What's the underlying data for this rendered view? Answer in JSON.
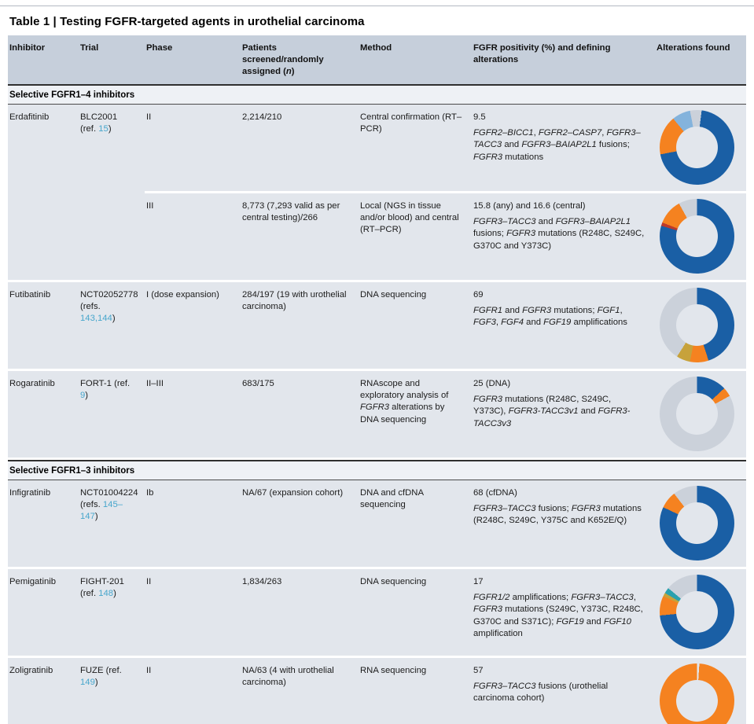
{
  "title": {
    "text": "Table 1 | Testing FGFR-targeted agents in urothelial carcinoma"
  },
  "table": {
    "columns": [
      "Inhibitor",
      "Trial",
      "Phase",
      "Patients screened/randomly assigned (*n*)",
      "Method",
      "FGFR positivity (%) and defining alterations",
      "Alterations found"
    ],
    "sections": [
      {
        "header": "Selective FGFR1–4 inhibitors",
        "rows": [
          {
            "inhibitor": "Erdafitinib",
            "trial": "BLC2001 (ref. {15})",
            "entries": [
              {
                "phase": "II",
                "patients": "2,214/210",
                "method": "Central confirmation (RT–PCR)",
                "positivity": {
                  "value": "9.5",
                  "detail": "*FGFR2–BICC1*, *FGFR2–CASP7*, *FGFR3–TACC3* and *FGFR3–BAIAP2L1* fusions; *FGFR3* mutations"
                },
                "donut": [
                  [
                    "gray",
                    2
                  ],
                  [
                    "blue",
                    70
                  ],
                  [
                    "orange",
                    17
                  ],
                  [
                    "lightblue",
                    8
                  ],
                  [
                    "gray",
                    3
                  ]
                ]
              },
              {
                "phase": "III",
                "patients": "8,773 (7,293 valid as per central testing)/266",
                "method": "Local (NGS in tissue and/or blood) and central (RT–PCR)",
                "positivity": {
                  "value": "15.8 (any) and 16.6 (central)",
                  "detail": "*FGFR3–TACC3* and *FGFR3–BAIAP2L1* fusions; *FGFR3* mutations (R248C, S249C, G370C and Y373C)"
                },
                "donut": [
                  [
                    "blue",
                    79.5
                  ],
                  [
                    "red",
                    1.5
                  ],
                  [
                    "orange",
                    11
                  ],
                  [
                    "gray",
                    8
                  ]
                ]
              }
            ]
          },
          {
            "inhibitor": "Futibatinib",
            "trial": "NCT02052778 (refs. {143,144})",
            "entries": [
              {
                "phase": "I (dose expansion)",
                "patients": "284/197 (19 with urothelial carcinoma)",
                "method": "DNA sequencing",
                "positivity": {
                  "value": "69",
                  "detail": "*FGFR1* and *FGFR3* mutations; *FGF1*, *FGF3*, *FGF4* and *FGF19* amplifications"
                },
                "donut": [
                  [
                    "blue",
                    45
                  ],
                  [
                    "orange",
                    8
                  ],
                  [
                    "gold",
                    6
                  ],
                  [
                    "gray",
                    41
                  ]
                ]
              }
            ]
          },
          {
            "inhibitor": "Rogaratinib",
            "trial": "FORT-1 (ref. {9})",
            "entries": [
              {
                "phase": "II–III",
                "patients": "683/175",
                "method": "RNAscope and exploratory analysis of *FGFR3* alterations by DNA sequencing",
                "positivity": {
                  "value": "25 (DNA)",
                  "detail": "*FGFR3* mutations (R248C, S249C, Y373C), *FGFR3-TACC3v1* and *FGFR3-TACC3v3*"
                },
                "donut": [
                  [
                    "blue",
                    13
                  ],
                  [
                    "orange",
                    4
                  ],
                  [
                    "gray",
                    83
                  ]
                ]
              }
            ]
          }
        ]
      },
      {
        "header": "Selective FGFR1–3 inhibitors",
        "rows": [
          {
            "inhibitor": "Infigratinib",
            "trial": "NCT01004224 (refs. {145–147})",
            "entries": [
              {
                "phase": "Ib",
                "patients": "NA/67 (expansion cohort)",
                "method": "DNA and cfDNA sequencing",
                "positivity": {
                  "value": "68 (cfDNA)",
                  "detail": "*FGFR3–TACC3* fusions; *FGFR3* mutations (R248C, S249C, Y375C and K652E/Q)"
                },
                "donut": [
                  [
                    "blue",
                    82
                  ],
                  [
                    "orange",
                    7.5
                  ],
                  [
                    "gray",
                    10.5
                  ]
                ]
              }
            ]
          },
          {
            "inhibitor": "Pemigatinib",
            "trial": "FIGHT-201 (ref. {148})",
            "entries": [
              {
                "phase": "II",
                "patients": "1,834/263",
                "method": "DNA sequencing",
                "positivity": {
                  "value": "17",
                  "detail": "*FGFR1/2* amplifications; *FGFR3–TACC3*, *FGFR3* mutations (S249C, Y373C, R248C, G370C and S371C); *FGF19* and *FGF10* amplification"
                },
                "donut": [
                  [
                    "blue",
                    73.5
                  ],
                  [
                    "orange",
                    8.5
                  ],
                  [
                    "gold",
                    1.5
                  ],
                  [
                    "teal",
                    2.5
                  ],
                  [
                    "gray",
                    14
                  ]
                ]
              }
            ]
          },
          {
            "inhibitor": "Zoligratinib",
            "trial": "FUZE (ref. {149})",
            "entries": [
              {
                "phase": "II",
                "patients": "NA/63 (4 with urothelial carcinoma)",
                "method": "RNA sequencing",
                "positivity": {
                  "value": "57",
                  "detail": "*FGFR3–TACC3* fusions (urothelial carcinoma cohort)"
                },
                "donut": [
                  [
                    "gap",
                    1
                  ],
                  [
                    "orange",
                    99
                  ]
                ]
              }
            ]
          }
        ]
      }
    ]
  },
  "donut_colors": {
    "blue": "#1a5fa5",
    "orange": "#f58220",
    "lightblue": "#84b3dc",
    "gray": "#cbd1da",
    "red": "#bd3a2a",
    "gold": "#c7a23b",
    "teal": "#2aa1ae",
    "gap": "#e2e6ec"
  }
}
